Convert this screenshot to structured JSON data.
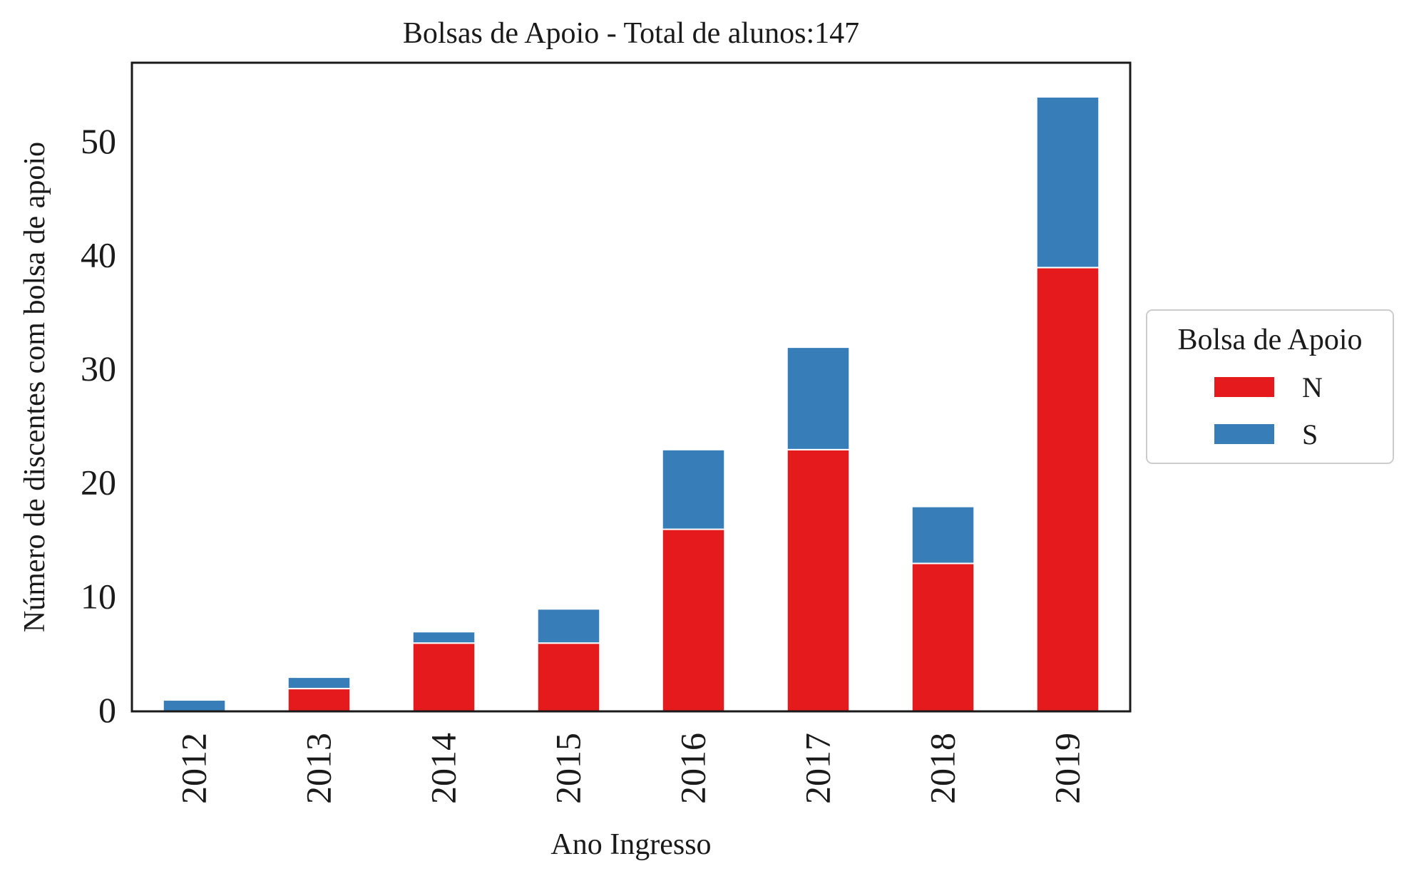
{
  "chart_data": {
    "type": "bar",
    "stacked": true,
    "title": "Bolsas de Apoio - Total de alunos:147",
    "xlabel": "Ano Ingresso",
    "ylabel": "Número de discentes com bolsa de apoio",
    "categories": [
      "2012",
      "2013",
      "2014",
      "2015",
      "2016",
      "2017",
      "2018",
      "2019"
    ],
    "series": [
      {
        "name": "N",
        "color": "#e41a1c",
        "values": [
          0,
          2,
          6,
          6,
          16,
          23,
          13,
          39
        ]
      },
      {
        "name": "S",
        "color": "#377eb8",
        "values": [
          1,
          1,
          1,
          3,
          7,
          9,
          5,
          15
        ]
      }
    ],
    "ylim": [
      0,
      57
    ],
    "yticks": [
      0,
      10,
      20,
      30,
      40,
      50
    ],
    "grid": false,
    "legend": {
      "title": "Bolsa de Apoio",
      "placement": "outside-right"
    }
  }
}
